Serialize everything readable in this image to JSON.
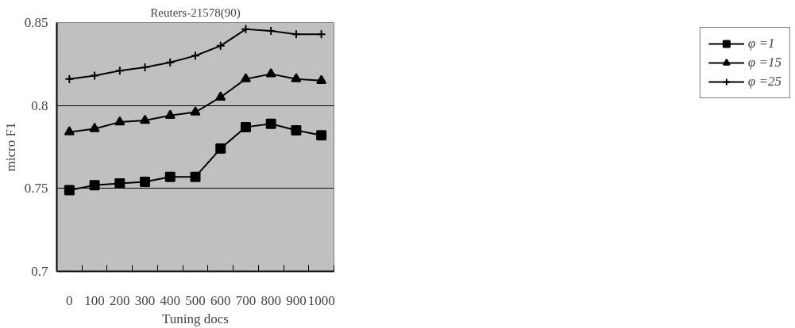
{
  "chart_data": {
    "type": "line",
    "title": "Reuters-21578(90)",
    "xlabel": "Tuning docs",
    "ylabel": "micro F1",
    "categories": [
      "0",
      "100",
      "200",
      "300",
      "400",
      "500",
      "600",
      "700",
      "800",
      "900",
      "1000"
    ],
    "ylim": [
      0.7,
      0.85
    ],
    "yticks": [
      0.7,
      0.75,
      0.8,
      0.85
    ],
    "grid": "y",
    "legend": "right",
    "series": [
      {
        "name": "φ =1",
        "color": "#000000",
        "marker": "square",
        "values": [
          0.749,
          0.752,
          0.753,
          0.754,
          0.757,
          0.757,
          0.774,
          0.787,
          0.789,
          0.785,
          0.782
        ]
      },
      {
        "name": "φ =15",
        "color": "#000000",
        "marker": "triangle",
        "values": [
          0.784,
          0.786,
          0.79,
          0.791,
          0.794,
          0.796,
          0.805,
          0.816,
          0.819,
          0.816,
          0.815
        ]
      },
      {
        "name": "φ =25",
        "color": "#000000",
        "marker": "cross",
        "values": [
          0.816,
          0.818,
          0.821,
          0.823,
          0.826,
          0.83,
          0.836,
          0.846,
          0.845,
          0.843,
          0.843
        ]
      }
    ]
  }
}
